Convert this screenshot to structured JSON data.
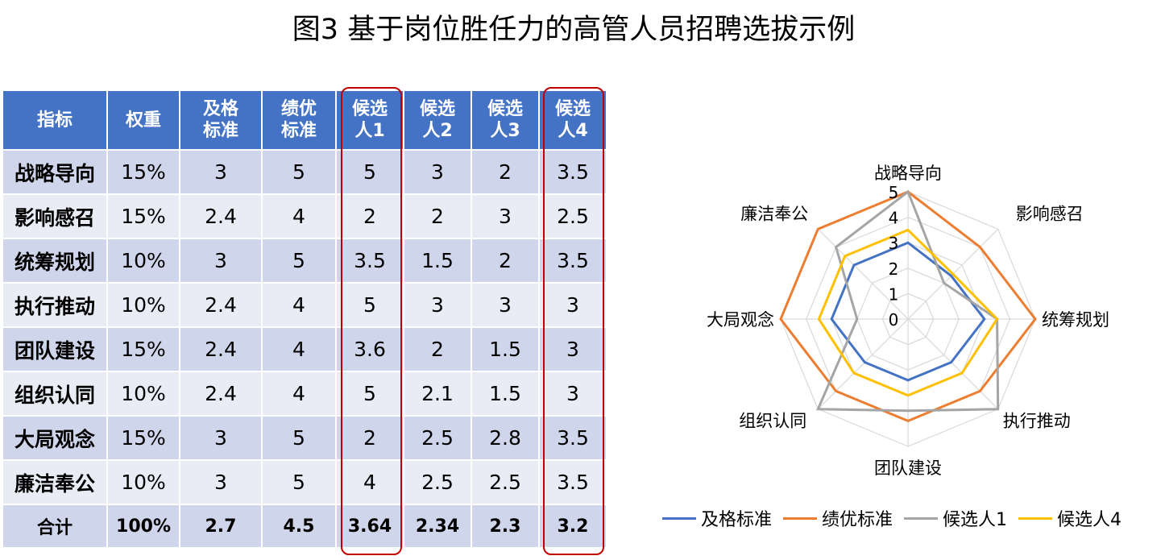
{
  "title": "图3  基于岗位胜任力的高管人员招聘选拔示例",
  "table": {
    "headers": [
      "指标",
      "权重",
      "及格\n标准",
      "绩优\n标准",
      "候选\n人1",
      "候选\n人2",
      "候选\n人3",
      "候选\n人4"
    ],
    "rows": [
      [
        "战略导向",
        "15%",
        "3",
        "5",
        "5",
        "3",
        "2",
        "3.5"
      ],
      [
        "影响感召",
        "15%",
        "2.4",
        "4",
        "2",
        "2",
        "3",
        "2.5"
      ],
      [
        "统筹规划",
        "10%",
        "3",
        "5",
        "3.5",
        "1.5",
        "2",
        "3.5"
      ],
      [
        "执行推动",
        "10%",
        "2.4",
        "4",
        "5",
        "3",
        "3",
        "3"
      ],
      [
        "团队建设",
        "15%",
        "2.4",
        "4",
        "3.6",
        "2",
        "1.5",
        "3"
      ],
      [
        "组织认同",
        "10%",
        "2.4",
        "4",
        "5",
        "2.1",
        "1.5",
        "3"
      ],
      [
        "大局观念",
        "15%",
        "3",
        "5",
        "2",
        "2.5",
        "2.8",
        "3.5"
      ],
      [
        "廉洁奉公",
        "10%",
        "3",
        "5",
        "4",
        "2.5",
        "2.5",
        "3.5"
      ]
    ],
    "total": [
      "合计",
      "100%",
      "2.7",
      "4.5",
      "3.64",
      "2.34",
      "2.3",
      "3.2"
    ],
    "highlight_columns": [
      "候选\n人1",
      "候选\n人4"
    ],
    "header_color": "#4472c4",
    "highlight_color": "#c00000"
  },
  "chart_data": {
    "type": "radar",
    "categories": [
      "战略导向",
      "影响感召",
      "统筹规划",
      "执行推动",
      "团队建设",
      "组织认同",
      "大局观念",
      "廉洁奉公"
    ],
    "rlim": [
      0,
      5
    ],
    "ticks": [
      "0",
      "1",
      "2",
      "3",
      "4",
      "5"
    ],
    "series": [
      {
        "name": "及格标准",
        "color": "#4472c4",
        "values": [
          3,
          2.4,
          3,
          2.4,
          2.4,
          2.4,
          3,
          3
        ]
      },
      {
        "name": "绩优标准",
        "color": "#ed7d31",
        "values": [
          5,
          4,
          5,
          4,
          4,
          4,
          5,
          5
        ]
      },
      {
        "name": "候选人1",
        "color": "#a5a5a5",
        "values": [
          5,
          2,
          3.5,
          5,
          3.6,
          5,
          2,
          4
        ]
      },
      {
        "name": "候选人4",
        "color": "#ffc000",
        "values": [
          3.5,
          2.5,
          3.5,
          3,
          3,
          3,
          3.5,
          3.5
        ]
      }
    ],
    "grid": true,
    "legend_position": "bottom"
  }
}
